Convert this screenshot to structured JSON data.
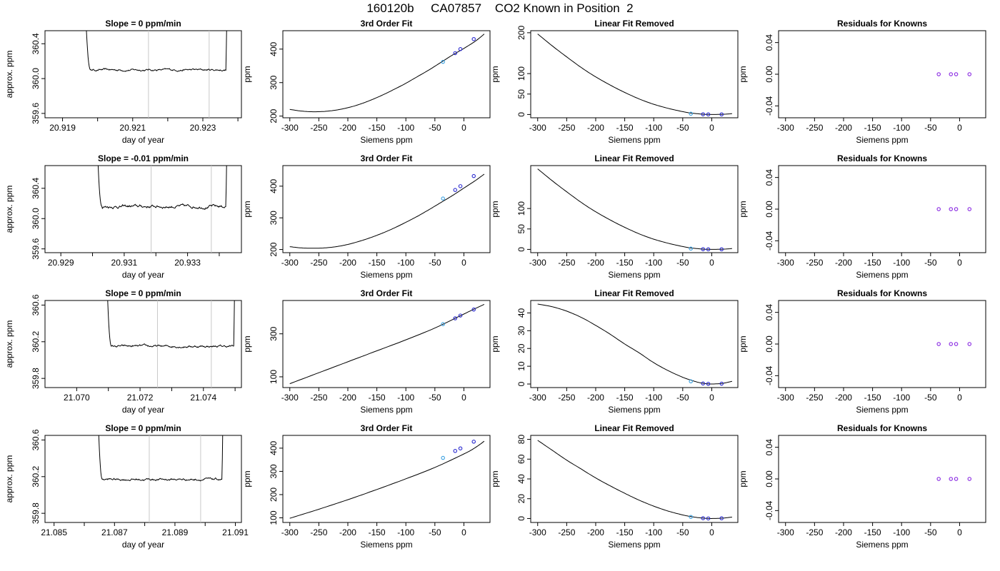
{
  "page_title": "160120b     CA07857    CO2 Known in Position  2",
  "colors": {
    "axis": "#000000",
    "curve": "#000000",
    "window_line": "#c8c8c8",
    "known_point": "#2a2ad0",
    "first_point": "#3aa0e0",
    "residual_point": "#8a2be2"
  },
  "chart_data": [
    {
      "row": 1,
      "panel": "timeseries",
      "type": "line",
      "title": "Slope =  0  ppm/min",
      "xlabel": "day of year",
      "ylabel": "approx. ppm",
      "xlim": [
        20.9185,
        20.9241
      ],
      "ylim": [
        359.55,
        360.55
      ],
      "x_ticks": [
        20.919,
        20.92,
        20.921,
        20.922,
        20.923,
        20.924
      ],
      "x_tick_labels": [
        "20.919",
        "",
        "20.921",
        "",
        "20.923",
        ""
      ],
      "y_ticks": [
        359.6,
        360.0,
        360.4
      ],
      "y_tick_labels": [
        "359.6",
        "360.0",
        "360.4"
      ],
      "plateau_start": 20.9198,
      "plateau_end": 20.9237,
      "plateau_value": 360.1,
      "noise": 0.012,
      "window_lines": [
        20.92145,
        20.92318
      ]
    },
    {
      "row": 1,
      "panel": "fit",
      "type": "line",
      "title": "3rd Order Fit",
      "xlabel": "Siemens ppm",
      "ylabel": "ppm",
      "xlim": [
        -312,
        45
      ],
      "ylim": [
        195,
        455
      ],
      "x_ticks": [
        -300,
        -250,
        -200,
        -150,
        -100,
        -50,
        0
      ],
      "x_tick_labels": [
        "-300",
        "-250",
        "-200",
        "-150",
        "-100",
        "-50",
        "0"
      ],
      "y_ticks": [
        200,
        300,
        400
      ],
      "y_tick_labels": [
        "200",
        "300",
        "400"
      ],
      "curve": {
        "x": [
          -300,
          -280,
          -260,
          -240,
          -220,
          -200,
          -180,
          -160,
          -140,
          -120,
          -100,
          -80,
          -60,
          -40,
          -20,
          0,
          20,
          35
        ],
        "y": [
          220,
          215,
          213,
          214,
          218,
          225,
          235,
          248,
          263,
          280,
          298,
          318,
          338,
          360,
          382,
          402,
          424,
          445
        ]
      },
      "points": {
        "x": [
          -36,
          -15,
          -6,
          17
        ],
        "y": [
          362,
          388,
          400,
          430
        ]
      }
    },
    {
      "row": 1,
      "panel": "linear_removed",
      "type": "line",
      "title": "Linear Fit Removed",
      "xlabel": "Siemens ppm",
      "ylabel": "ppm",
      "xlim": [
        -312,
        45
      ],
      "ylim": [
        -8,
        205
      ],
      "x_ticks": [
        -300,
        -250,
        -200,
        -150,
        -100,
        -50,
        0
      ],
      "x_tick_labels": [
        "-300",
        "-250",
        "-200",
        "-150",
        "-100",
        "-50",
        "0"
      ],
      "y_ticks": [
        0,
        50,
        100,
        200
      ],
      "y_tick_labels": [
        "0",
        "50",
        "100",
        "200"
      ],
      "curve": {
        "x": [
          -300,
          -275,
          -250,
          -225,
          -200,
          -175,
          -150,
          -125,
          -100,
          -75,
          -50,
          -36,
          -25,
          -15,
          -6,
          0,
          17,
          35
        ],
        "y": [
          197,
          168,
          141,
          115,
          92,
          72,
          54,
          38,
          25,
          15,
          7,
          3.5,
          2,
          0.6,
          0.2,
          0,
          0.4,
          2
        ]
      },
      "points": {
        "x": [
          -36,
          -15,
          -6,
          17
        ],
        "y": [
          2,
          0.5,
          0.2,
          0.3
        ]
      }
    },
    {
      "row": 1,
      "panel": "residuals",
      "type": "scatter",
      "title": "Residuals for Knowns",
      "xlabel": "Siemens ppm",
      "ylabel": "ppm",
      "xlim": [
        -312,
        45
      ],
      "ylim": [
        -0.055,
        0.055
      ],
      "x_ticks": [
        -300,
        -250,
        -200,
        -150,
        -100,
        -50,
        0
      ],
      "x_tick_labels": [
        "-300",
        "-250",
        "-200",
        "-150",
        "-100",
        "-50",
        "0"
      ],
      "y_ticks": [
        -0.04,
        0.0,
        0.04
      ],
      "y_tick_labels": [
        "-0.04",
        "0.00",
        "0.04"
      ],
      "points": {
        "x": [
          -36,
          -15,
          -6,
          17
        ],
        "y": [
          0,
          0,
          0,
          0
        ]
      }
    },
    {
      "row": 2,
      "panel": "timeseries",
      "type": "line",
      "title": "Slope =  -0.01  ppm/min",
      "xlabel": "day of year",
      "ylabel": "approx. ppm",
      "xlim": [
        20.9285,
        20.9347
      ],
      "ylim": [
        359.55,
        360.7
      ],
      "x_ticks": [
        20.929,
        20.93,
        20.931,
        20.932,
        20.933,
        20.934
      ],
      "x_tick_labels": [
        "20.929",
        "",
        "20.931",
        "",
        "20.933",
        ""
      ],
      "y_ticks": [
        359.6,
        360.0,
        360.4
      ],
      "y_tick_labels": [
        "359.6",
        "360.0",
        "360.4"
      ],
      "plateau_start": 20.9303,
      "plateau_end": 20.93425,
      "plateau_value": 360.16,
      "noise": 0.02,
      "window_lines": [
        20.93185,
        20.93375
      ]
    },
    {
      "row": 2,
      "panel": "fit",
      "type": "line",
      "title": "3rd Order Fit",
      "xlabel": "Siemens ppm",
      "ylabel": "ppm",
      "xlim": [
        -312,
        45
      ],
      "ylim": [
        190,
        465
      ],
      "x_ticks": [
        -300,
        -250,
        -200,
        -150,
        -100,
        -50,
        0
      ],
      "x_tick_labels": [
        "-300",
        "-250",
        "-200",
        "-150",
        "-100",
        "-50",
        "0"
      ],
      "y_ticks": [
        200,
        300,
        400
      ],
      "y_tick_labels": [
        "200",
        "300",
        "400"
      ],
      "curve": {
        "x": [
          -300,
          -280,
          -260,
          -240,
          -220,
          -200,
          -180,
          -160,
          -140,
          -120,
          -100,
          -80,
          -60,
          -40,
          -20,
          0,
          20,
          35
        ],
        "y": [
          209,
          205,
          204,
          205,
          209,
          216,
          226,
          238,
          252,
          268,
          286,
          305,
          326,
          348,
          370,
          394,
          418,
          438
        ]
      },
      "points": {
        "x": [
          -36,
          -15,
          -6,
          17
        ],
        "y": [
          361,
          388,
          400,
          432
        ]
      }
    },
    {
      "row": 2,
      "panel": "linear_removed",
      "type": "line",
      "title": "Linear Fit Removed",
      "xlabel": "Siemens ppm",
      "ylabel": "ppm",
      "xlim": [
        -312,
        45
      ],
      "ylim": [
        -8,
        205
      ],
      "x_ticks": [
        -300,
        -250,
        -200,
        -150,
        -100,
        -50,
        0
      ],
      "x_tick_labels": [
        "-300",
        "-250",
        "-200",
        "-150",
        "-100",
        "-50",
        "0"
      ],
      "y_ticks": [
        0,
        50,
        100
      ],
      "y_tick_labels": [
        "0",
        "50",
        "100"
      ],
      "curve": {
        "x": [
          -300,
          -275,
          -250,
          -225,
          -200,
          -175,
          -150,
          -125,
          -100,
          -75,
          -50,
          -36,
          -25,
          -15,
          -6,
          0,
          17,
          35
        ],
        "y": [
          197,
          168,
          141,
          115,
          92,
          72,
          54,
          38,
          25,
          15,
          7,
          3.5,
          2,
          0.6,
          0.2,
          0,
          0.4,
          2
        ]
      },
      "points": {
        "x": [
          -36,
          -15,
          -6,
          17
        ],
        "y": [
          2,
          0.5,
          0.2,
          0.3
        ]
      }
    },
    {
      "row": 2,
      "panel": "residuals",
      "type": "scatter",
      "title": "Residuals for Knowns",
      "xlabel": "Siemens ppm",
      "ylabel": "ppm",
      "xlim": [
        -312,
        45
      ],
      "ylim": [
        -0.055,
        0.055
      ],
      "x_ticks": [
        -300,
        -250,
        -200,
        -150,
        -100,
        -50,
        0
      ],
      "x_tick_labels": [
        "-300",
        "-250",
        "-200",
        "-150",
        "-100",
        "-50",
        "0"
      ],
      "y_ticks": [
        -0.04,
        0.0,
        0.04
      ],
      "y_tick_labels": [
        "-0.04",
        "0.00",
        "0.04"
      ],
      "points": {
        "x": [
          -36,
          -15,
          -6,
          17
        ],
        "y": [
          0,
          0,
          0,
          0
        ]
      }
    },
    {
      "row": 3,
      "panel": "timeseries",
      "type": "line",
      "title": "Slope =  0  ppm/min",
      "xlabel": "day of year",
      "ylabel": "approx. ppm",
      "xlim": [
        21.069,
        21.0752
      ],
      "ylim": [
        359.7,
        360.65
      ],
      "x_ticks": [
        21.07,
        21.071,
        21.072,
        21.073,
        21.074,
        21.075
      ],
      "x_tick_labels": [
        "21.070",
        "",
        "21.072",
        "",
        "21.074",
        ""
      ],
      "y_ticks": [
        359.8,
        360.2,
        360.6
      ],
      "y_tick_labels": [
        "359.8",
        "360.2",
        "360.6"
      ],
      "plateau_start": 21.0711,
      "plateau_end": 21.075,
      "plateau_value": 360.15,
      "noise": 0.012,
      "window_lines": [
        21.07255,
        21.07425
      ]
    },
    {
      "row": 3,
      "panel": "fit",
      "type": "line",
      "title": "3rd Order Fit",
      "xlabel": "Siemens ppm",
      "ylabel": "ppm",
      "xlim": [
        -312,
        45
      ],
      "ylim": [
        50,
        455
      ],
      "x_ticks": [
        -300,
        -250,
        -200,
        -150,
        -100,
        -50,
        0
      ],
      "x_tick_labels": [
        "-300",
        "-250",
        "-200",
        "-150",
        "-100",
        "-50",
        "0"
      ],
      "y_ticks": [
        100,
        300
      ],
      "y_tick_labels": [
        "100",
        "300"
      ],
      "curve": {
        "x": [
          -300,
          -250,
          -200,
          -150,
          -100,
          -50,
          0,
          20,
          35
        ],
        "y": [
          68,
          119,
          170,
          221,
          272,
          327,
          392,
          418,
          437
        ]
      },
      "points": {
        "x": [
          -36,
          -15,
          -6,
          17
        ],
        "y": [
          345,
          372,
          385,
          413
        ]
      }
    },
    {
      "row": 3,
      "panel": "linear_removed",
      "type": "line",
      "title": "Linear Fit Removed",
      "xlabel": "Siemens ppm",
      "ylabel": "ppm",
      "xlim": [
        -312,
        45
      ],
      "ylim": [
        -2,
        47
      ],
      "x_ticks": [
        -300,
        -250,
        -200,
        -150,
        -100,
        -50,
        0
      ],
      "x_tick_labels": [
        "-300",
        "-250",
        "-200",
        "-150",
        "-100",
        "-50",
        "0"
      ],
      "y_ticks": [
        0,
        10,
        20,
        30,
        40
      ],
      "y_tick_labels": [
        "0",
        "10",
        "20",
        "30",
        "40"
      ],
      "curve": {
        "x": [
          -300,
          -275,
          -250,
          -225,
          -200,
          -175,
          -150,
          -125,
          -100,
          -75,
          -50,
          -36,
          -25,
          -15,
          -6,
          0,
          17,
          35
        ],
        "y": [
          45,
          43.5,
          41,
          37.5,
          33,
          28,
          22.5,
          17.5,
          12,
          7.5,
          3.8,
          2.2,
          1.1,
          0.4,
          0.1,
          0,
          0.3,
          1.5
        ]
      },
      "points": {
        "x": [
          -36,
          -15,
          -6,
          17
        ],
        "y": [
          1.5,
          0.3,
          0.1,
          0.2
        ]
      }
    },
    {
      "row": 3,
      "panel": "residuals",
      "type": "scatter",
      "title": "Residuals for Knowns",
      "xlabel": "Siemens ppm",
      "ylabel": "ppm",
      "xlim": [
        -312,
        45
      ],
      "ylim": [
        -0.055,
        0.055
      ],
      "x_ticks": [
        -300,
        -250,
        -200,
        -150,
        -100,
        -50,
        0
      ],
      "x_tick_labels": [
        "-300",
        "-250",
        "-200",
        "-150",
        "-100",
        "-50",
        "0"
      ],
      "y_ticks": [
        -0.04,
        0.0,
        0.04
      ],
      "y_tick_labels": [
        "-0.04",
        "0.00",
        "0.04"
      ],
      "points": {
        "x": [
          -36,
          -15,
          -6,
          17
        ],
        "y": [
          0,
          0,
          0,
          0
        ]
      }
    },
    {
      "row": 4,
      "panel": "timeseries",
      "type": "line",
      "title": "Slope =  0  ppm/min",
      "xlabel": "day of year",
      "ylabel": "approx. ppm",
      "xlim": [
        21.0847,
        21.0912
      ],
      "ylim": [
        359.7,
        360.65
      ],
      "x_ticks": [
        21.085,
        21.086,
        21.087,
        21.088,
        21.089,
        21.09,
        21.091
      ],
      "x_tick_labels": [
        "21.085",
        "",
        "21.087",
        "",
        "21.089",
        "",
        "21.091"
      ],
      "y_ticks": [
        359.8,
        360.2,
        360.6
      ],
      "y_tick_labels": [
        "359.8",
        "360.2",
        "360.6"
      ],
      "plateau_start": 21.0866,
      "plateau_end": 21.0906,
      "plateau_value": 360.17,
      "noise": 0.012,
      "window_lines": [
        21.08815,
        21.08985
      ]
    },
    {
      "row": 4,
      "panel": "fit",
      "type": "line",
      "title": "3rd Order Fit",
      "xlabel": "Siemens ppm",
      "ylabel": "ppm",
      "xlim": [
        -312,
        45
      ],
      "ylim": [
        80,
        455
      ],
      "x_ticks": [
        -300,
        -250,
        -200,
        -150,
        -100,
        -50,
        0
      ],
      "x_tick_labels": [
        "-300",
        "-250",
        "-200",
        "-150",
        "-100",
        "-50",
        "0"
      ],
      "y_ticks": [
        100,
        200,
        300,
        400
      ],
      "y_tick_labels": [
        "100",
        "200",
        "300",
        "400"
      ],
      "curve": {
        "x": [
          -300,
          -250,
          -200,
          -150,
          -100,
          -50,
          0,
          20,
          35
        ],
        "y": [
          98,
          137,
          178,
          222,
          268,
          317,
          375,
          403,
          430
        ]
      },
      "points": {
        "x": [
          -36,
          -15,
          -6,
          17
        ],
        "y": [
          358,
          388,
          399,
          428
        ]
      }
    },
    {
      "row": 4,
      "panel": "linear_removed",
      "type": "line",
      "title": "Linear Fit Removed",
      "xlabel": "Siemens ppm",
      "ylabel": "ppm",
      "xlim": [
        -312,
        45
      ],
      "ylim": [
        -4,
        84
      ],
      "x_ticks": [
        -300,
        -250,
        -200,
        -150,
        -100,
        -50,
        0
      ],
      "x_tick_labels": [
        "-300",
        "-250",
        "-200",
        "-150",
        "-100",
        "-50",
        "0"
      ],
      "y_ticks": [
        0,
        20,
        40,
        60,
        80
      ],
      "y_tick_labels": [
        "0",
        "20",
        "40",
        "60",
        "80"
      ],
      "curve": {
        "x": [
          -300,
          -275,
          -250,
          -225,
          -200,
          -175,
          -150,
          -125,
          -100,
          -75,
          -50,
          -36,
          -25,
          -15,
          -6,
          0,
          17,
          35
        ],
        "y": [
          79,
          69,
          59,
          50,
          41,
          33,
          25.5,
          18.5,
          12.5,
          7.5,
          3.6,
          2,
          1,
          0.4,
          0.1,
          0,
          0.3,
          1.4
        ]
      },
      "points": {
        "x": [
          -36,
          -15,
          -6,
          17
        ],
        "y": [
          1.6,
          0.3,
          0.1,
          0.2
        ]
      }
    },
    {
      "row": 4,
      "panel": "residuals",
      "type": "scatter",
      "title": "Residuals for Knowns",
      "xlabel": "Siemens ppm",
      "ylabel": "ppm",
      "xlim": [
        -312,
        45
      ],
      "ylim": [
        -0.055,
        0.055
      ],
      "x_ticks": [
        -300,
        -250,
        -200,
        -150,
        -100,
        -50,
        0
      ],
      "x_tick_labels": [
        "-300",
        "-250",
        "-200",
        "-150",
        "-100",
        "-50",
        "0"
      ],
      "y_ticks": [
        -0.04,
        0.0,
        0.04
      ],
      "y_tick_labels": [
        "-0.04",
        "0.00",
        "0.04"
      ],
      "points": {
        "x": [
          -36,
          -15,
          -6,
          17
        ],
        "y": [
          0,
          0,
          0,
          0
        ]
      }
    }
  ]
}
